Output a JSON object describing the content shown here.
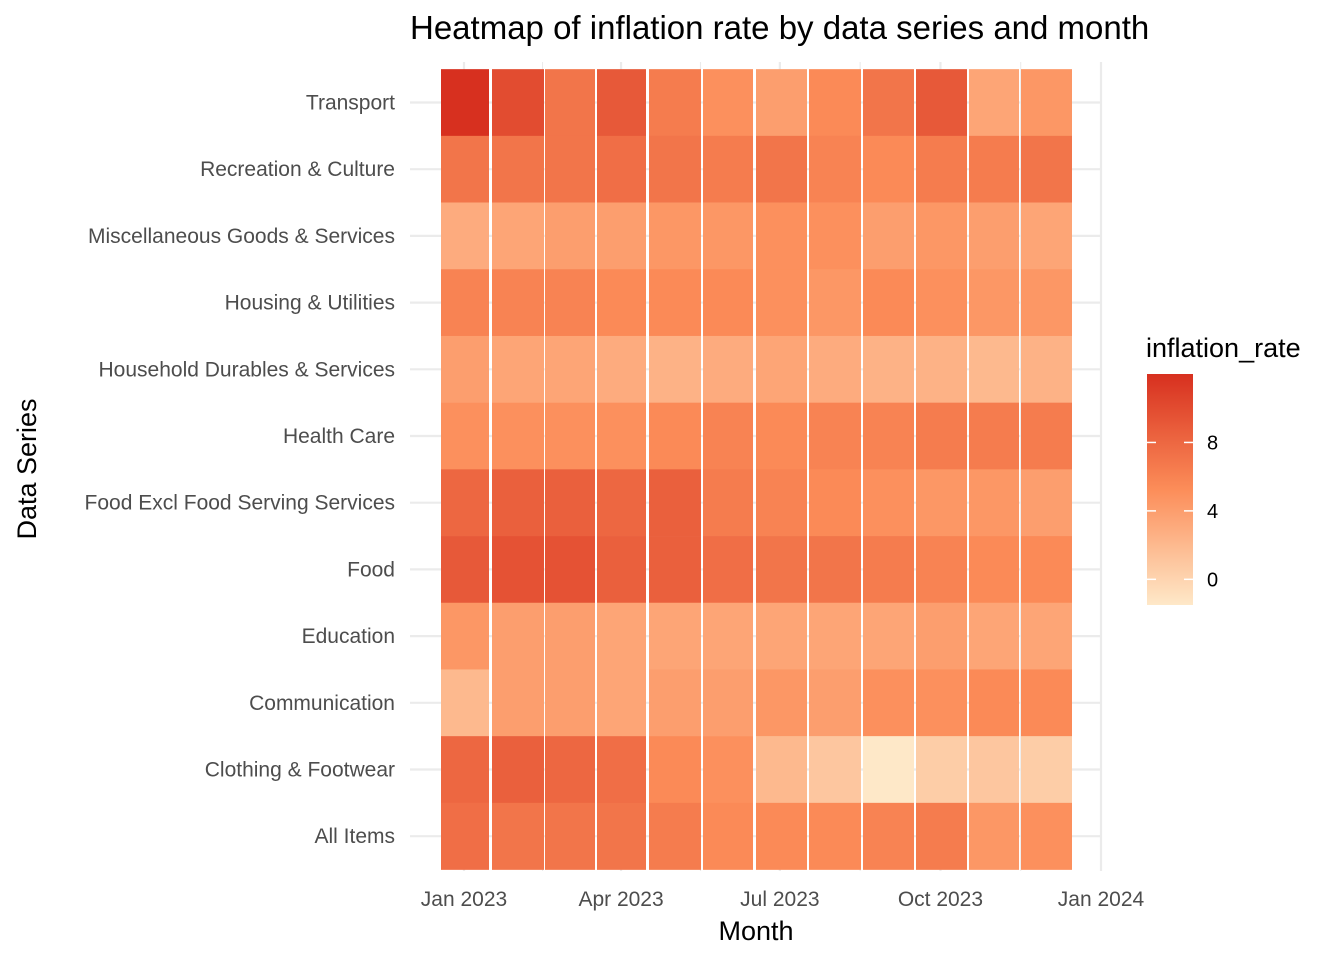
{
  "chart_data": {
    "type": "heatmap",
    "title": "Heatmap of inflation rate by data series and month",
    "xlabel": "Month",
    "ylabel": "Data Series",
    "legend_title": "inflation_rate",
    "legend_position": "right",
    "grid": true,
    "months": [
      "2023-01",
      "2023-02",
      "2023-03",
      "2023-04",
      "2023-05",
      "2023-06",
      "2023-07",
      "2023-08",
      "2023-09",
      "2023-10",
      "2023-11",
      "2023-12"
    ],
    "x_ticks": [
      {
        "date": "2023-01-01",
        "label": "Jan 2023"
      },
      {
        "date": "2023-04-01",
        "label": "Apr 2023"
      },
      {
        "date": "2023-07-01",
        "label": "Jul 2023"
      },
      {
        "date": "2023-10-01",
        "label": "Oct 2023"
      },
      {
        "date": "2024-01-01",
        "label": "Jan 2024"
      }
    ],
    "series_top_to_bottom": [
      "Transport",
      "Recreation & Culture",
      "Miscellaneous Goods & Services",
      "Housing & Utilities",
      "Household Durables & Services",
      "Health Care",
      "Food Excl Food Serving Services",
      "Food",
      "Education",
      "Communication",
      "Clothing & Footwear",
      "All Items"
    ],
    "values": [
      [
        12.0,
        10.0,
        7.0,
        9.0,
        6.5,
        5.0,
        4.0,
        5.5,
        7.0,
        9.0,
        3.5,
        4.5
      ],
      [
        7.0,
        7.0,
        7.0,
        7.5,
        7.0,
        6.5,
        7.0,
        6.0,
        5.5,
        6.5,
        6.5,
        7.0
      ],
      [
        3.0,
        3.5,
        4.0,
        4.0,
        4.5,
        4.5,
        5.0,
        5.0,
        4.0,
        4.5,
        4.0,
        3.5
      ],
      [
        6.0,
        6.0,
        6.0,
        5.5,
        5.5,
        5.5,
        5.0,
        4.5,
        5.5,
        5.0,
        4.5,
        4.5
      ],
      [
        4.0,
        3.5,
        3.5,
        3.0,
        2.5,
        3.0,
        3.5,
        3.0,
        2.5,
        2.5,
        2.0,
        2.5
      ],
      [
        5.0,
        5.0,
        5.0,
        5.0,
        5.5,
        6.0,
        5.5,
        6.0,
        6.0,
        6.5,
        6.5,
        6.5
      ],
      [
        8.0,
        8.5,
        8.5,
        8.0,
        8.5,
        6.5,
        6.0,
        5.5,
        5.0,
        4.5,
        4.5,
        4.0
      ],
      [
        9.0,
        9.5,
        9.5,
        8.5,
        8.5,
        7.5,
        7.0,
        7.0,
        6.5,
        6.0,
        5.5,
        5.5
      ],
      [
        4.5,
        4.0,
        4.0,
        3.5,
        3.5,
        3.5,
        3.5,
        3.5,
        3.5,
        4.0,
        3.5,
        3.5
      ],
      [
        2.0,
        4.0,
        4.0,
        3.5,
        4.0,
        4.0,
        4.5,
        4.0,
        5.0,
        5.0,
        5.5,
        5.5
      ],
      [
        8.0,
        8.5,
        8.0,
        7.5,
        5.5,
        5.0,
        2.0,
        1.0,
        -1.5,
        0.5,
        1.0,
        0.5
      ],
      [
        7.5,
        7.0,
        7.0,
        7.0,
        6.5,
        5.5,
        5.5,
        5.5,
        6.0,
        6.5,
        4.5,
        5.0
      ]
    ],
    "color_scale": {
      "min": -1.5,
      "max": 12.0,
      "low": "#fee8c8",
      "mid": "#fc8d59",
      "high": "#d7301f"
    },
    "legend_ticks": [
      0,
      4,
      8
    ]
  }
}
